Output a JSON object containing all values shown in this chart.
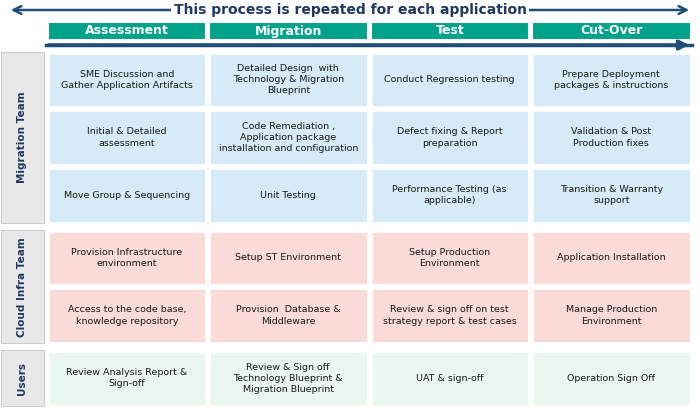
{
  "title": "This process is repeated for each application",
  "title_color": "#1F3864",
  "title_fontsize": 10,
  "header_labels": [
    "Assessment",
    "Migration",
    "Test",
    "Cut-Over"
  ],
  "header_bg": "#00A38A",
  "header_text_color": "#FFFFFF",
  "group_labels": [
    "Migration Team",
    "Cloud Infra Team",
    "Users"
  ],
  "group_label_color": "#1F3864",
  "group_label_bg": "#E8E8E8",
  "cell_bg_blue": "#D6EAF8",
  "cell_bg_red": "#FADBD8",
  "cell_bg_green": "#E9F7EF",
  "cells": [
    [
      "SME Discussion and\nGather Application Artifacts",
      "Detailed Design  with\nTechnology & Migration\nBlueprint",
      "Conduct Regression testing",
      "Prepare Deployment\npackages & instructions"
    ],
    [
      "Initial & Detailed\nassessment",
      "Code Remediation ,\nApplication package\ninstallation and configuration",
      "Defect fixing & Report\npreparation",
      "Validation & Post\nProduction fixes"
    ],
    [
      "Move Group & Sequencing",
      "Unit Testing",
      "Performance Testing (as\napplicable)",
      "Transition & Warranty\nsupport"
    ],
    [
      "Provision Infrastructure\nenvironment",
      "Setup ST Environment",
      "Setup Production\nEnvironment",
      "Application Installation"
    ],
    [
      "Access to the code base,\nknowledge repository",
      "Provision  Database &\nMiddleware",
      "Review & sign off on test\nstrategy report & test cases",
      "Manage Production\nEnvironment"
    ],
    [
      "Review Analysis Report &\nSign-off",
      "Review & Sign off\nTechnology Blueprint &\nMigration Blueprint",
      "UAT & sign-off",
      "Operation Sign Off"
    ]
  ],
  "row_group_idx": [
    0,
    0,
    0,
    1,
    1,
    2
  ],
  "arrow_color": "#1F4E79",
  "bg_color": "#FFFFFF",
  "cell_text_color": "#1A1A1A",
  "cell_fontsize": 6.8,
  "header_fontsize": 9,
  "group_label_fontsize": 7.5
}
